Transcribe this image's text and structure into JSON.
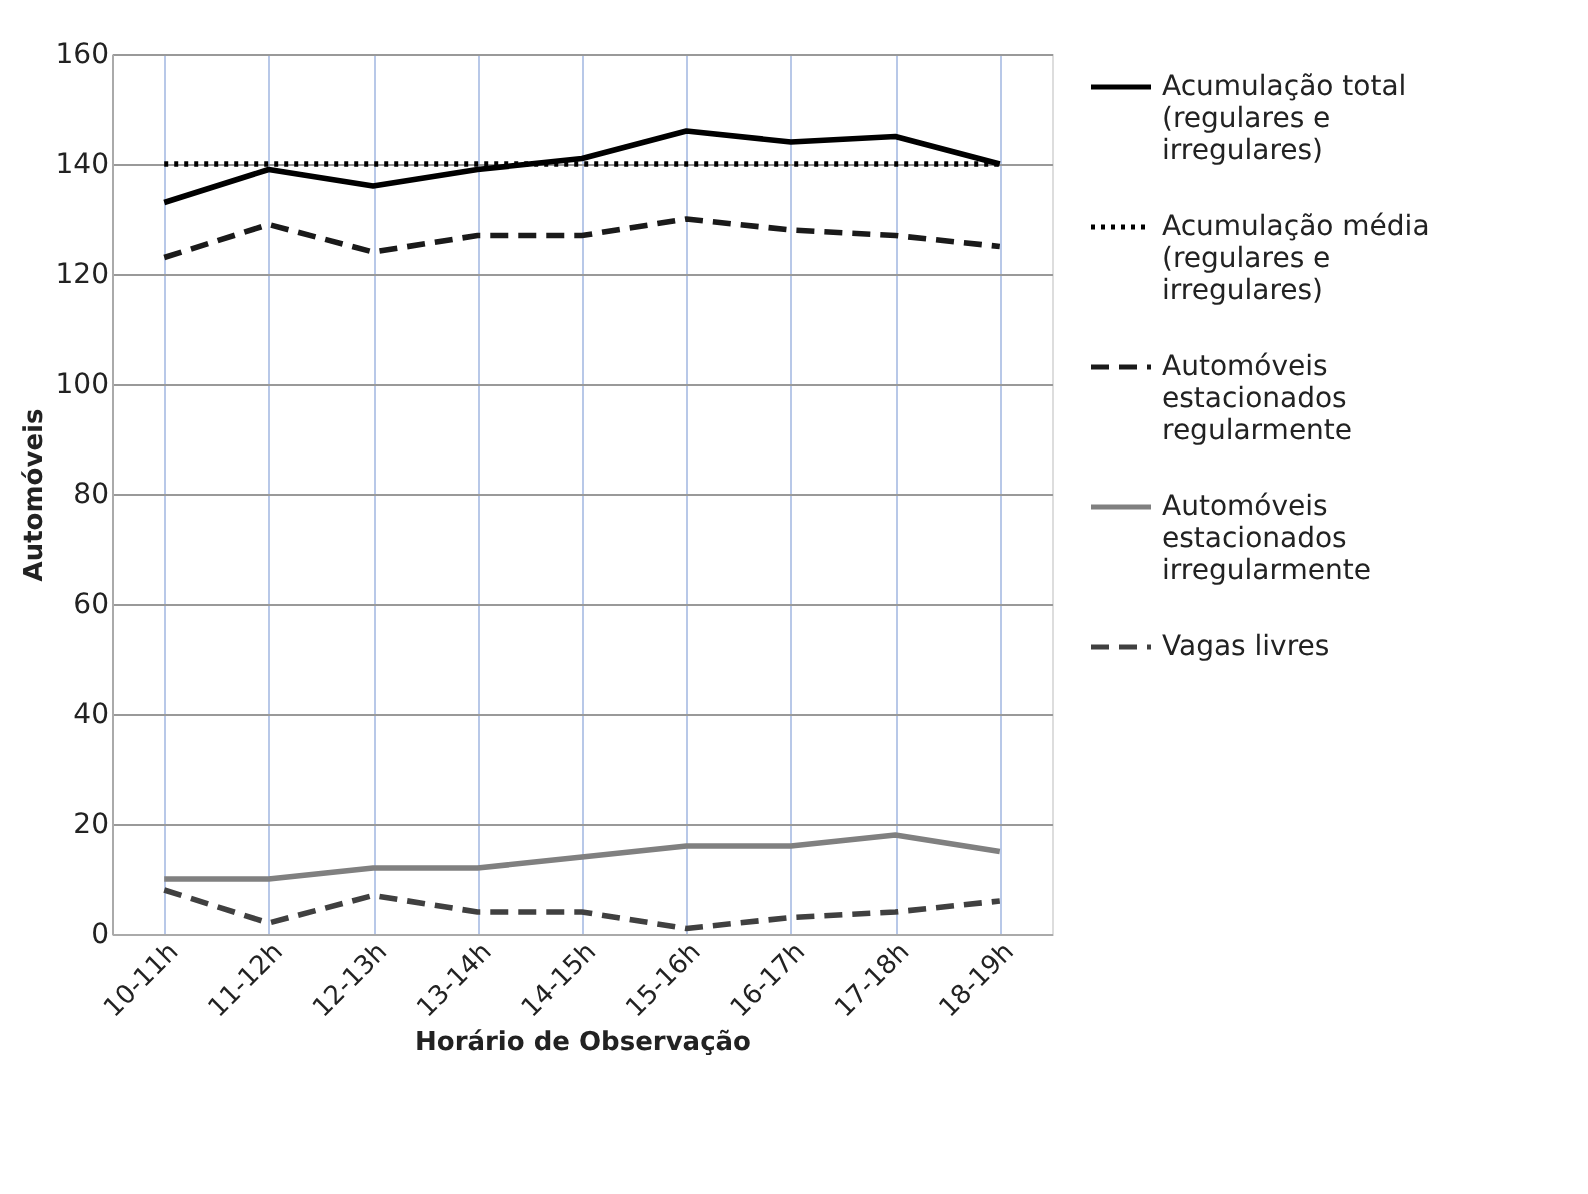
{
  "chart_data": {
    "type": "line",
    "xlabel": "Horário de Observação",
    "ylabel": "Automóveis",
    "categories": [
      "10-11h",
      "11-12h",
      "12-13h",
      "13-14h",
      "14-15h",
      "15-16h",
      "16-17h",
      "17-18h",
      "18-19h"
    ],
    "series": [
      {
        "name": "Acumulação total (regulares e irregulares)",
        "color": "#000000",
        "line_style": "solid",
        "values": [
          133,
          139,
          136,
          139,
          141,
          146,
          144,
          145,
          140
        ]
      },
      {
        "name": "Acumulação média (regulares e irregulares)",
        "color": "#000000",
        "line_style": "dotted",
        "values": [
          140,
          140,
          140,
          140,
          140,
          140,
          140,
          140,
          140
        ]
      },
      {
        "name": "Automóveis estacionados regularmente",
        "color": "#1a1a1a",
        "line_style": "dashed",
        "values": [
          123,
          129,
          124,
          127,
          127,
          130,
          128,
          127,
          125
        ]
      },
      {
        "name": "Automóveis estacionados irregularmente",
        "color": "#808080",
        "line_style": "solid",
        "values": [
          10,
          10,
          12,
          12,
          14,
          16,
          16,
          18,
          15
        ]
      },
      {
        "name": "Vagas livres",
        "color": "#404040",
        "line_style": "dashed",
        "values": [
          8,
          2,
          7,
          4,
          4,
          1,
          3,
          4,
          6
        ]
      }
    ],
    "ylim": [
      0,
      160
    ],
    "yticks": [
      0,
      20,
      40,
      60,
      80,
      100,
      120,
      140,
      160
    ],
    "grid": true,
    "legend": "right",
    "marker": "none"
  }
}
